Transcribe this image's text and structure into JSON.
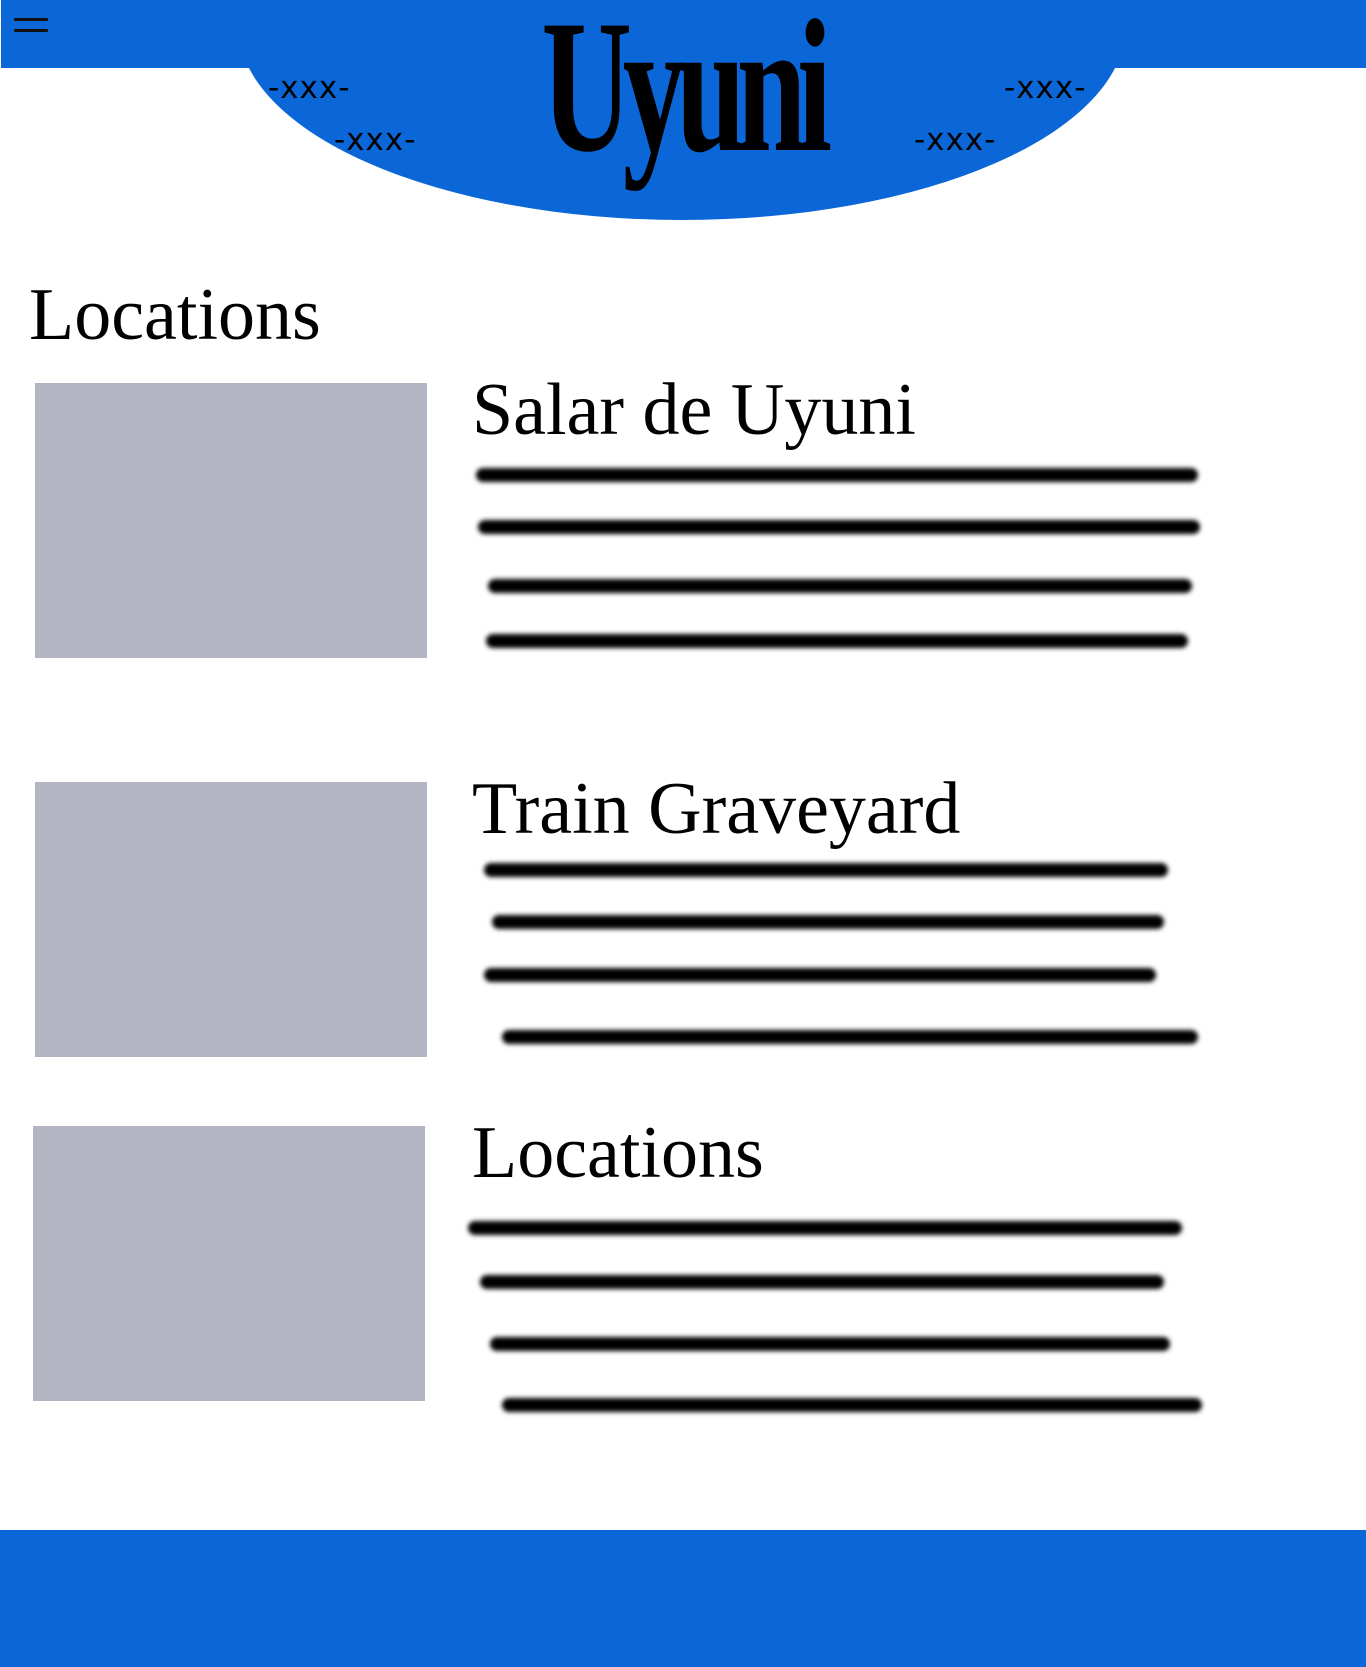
{
  "header": {
    "logo_text": "Uyuni",
    "decorations": [
      "-xxx-",
      "-xxx-",
      "-xxx-",
      "-xxx-"
    ],
    "menu_icon": "hamburger-menu-icon"
  },
  "main": {
    "section_title": "Locations",
    "cards": [
      {
        "title": "Salar de Uyuni"
      },
      {
        "title": "Train Graveyard"
      },
      {
        "title": "Locations"
      }
    ]
  },
  "colors": {
    "brand_blue": "#0b67d7",
    "placeholder_gray": "#b4b5c2",
    "text": "#000000"
  }
}
